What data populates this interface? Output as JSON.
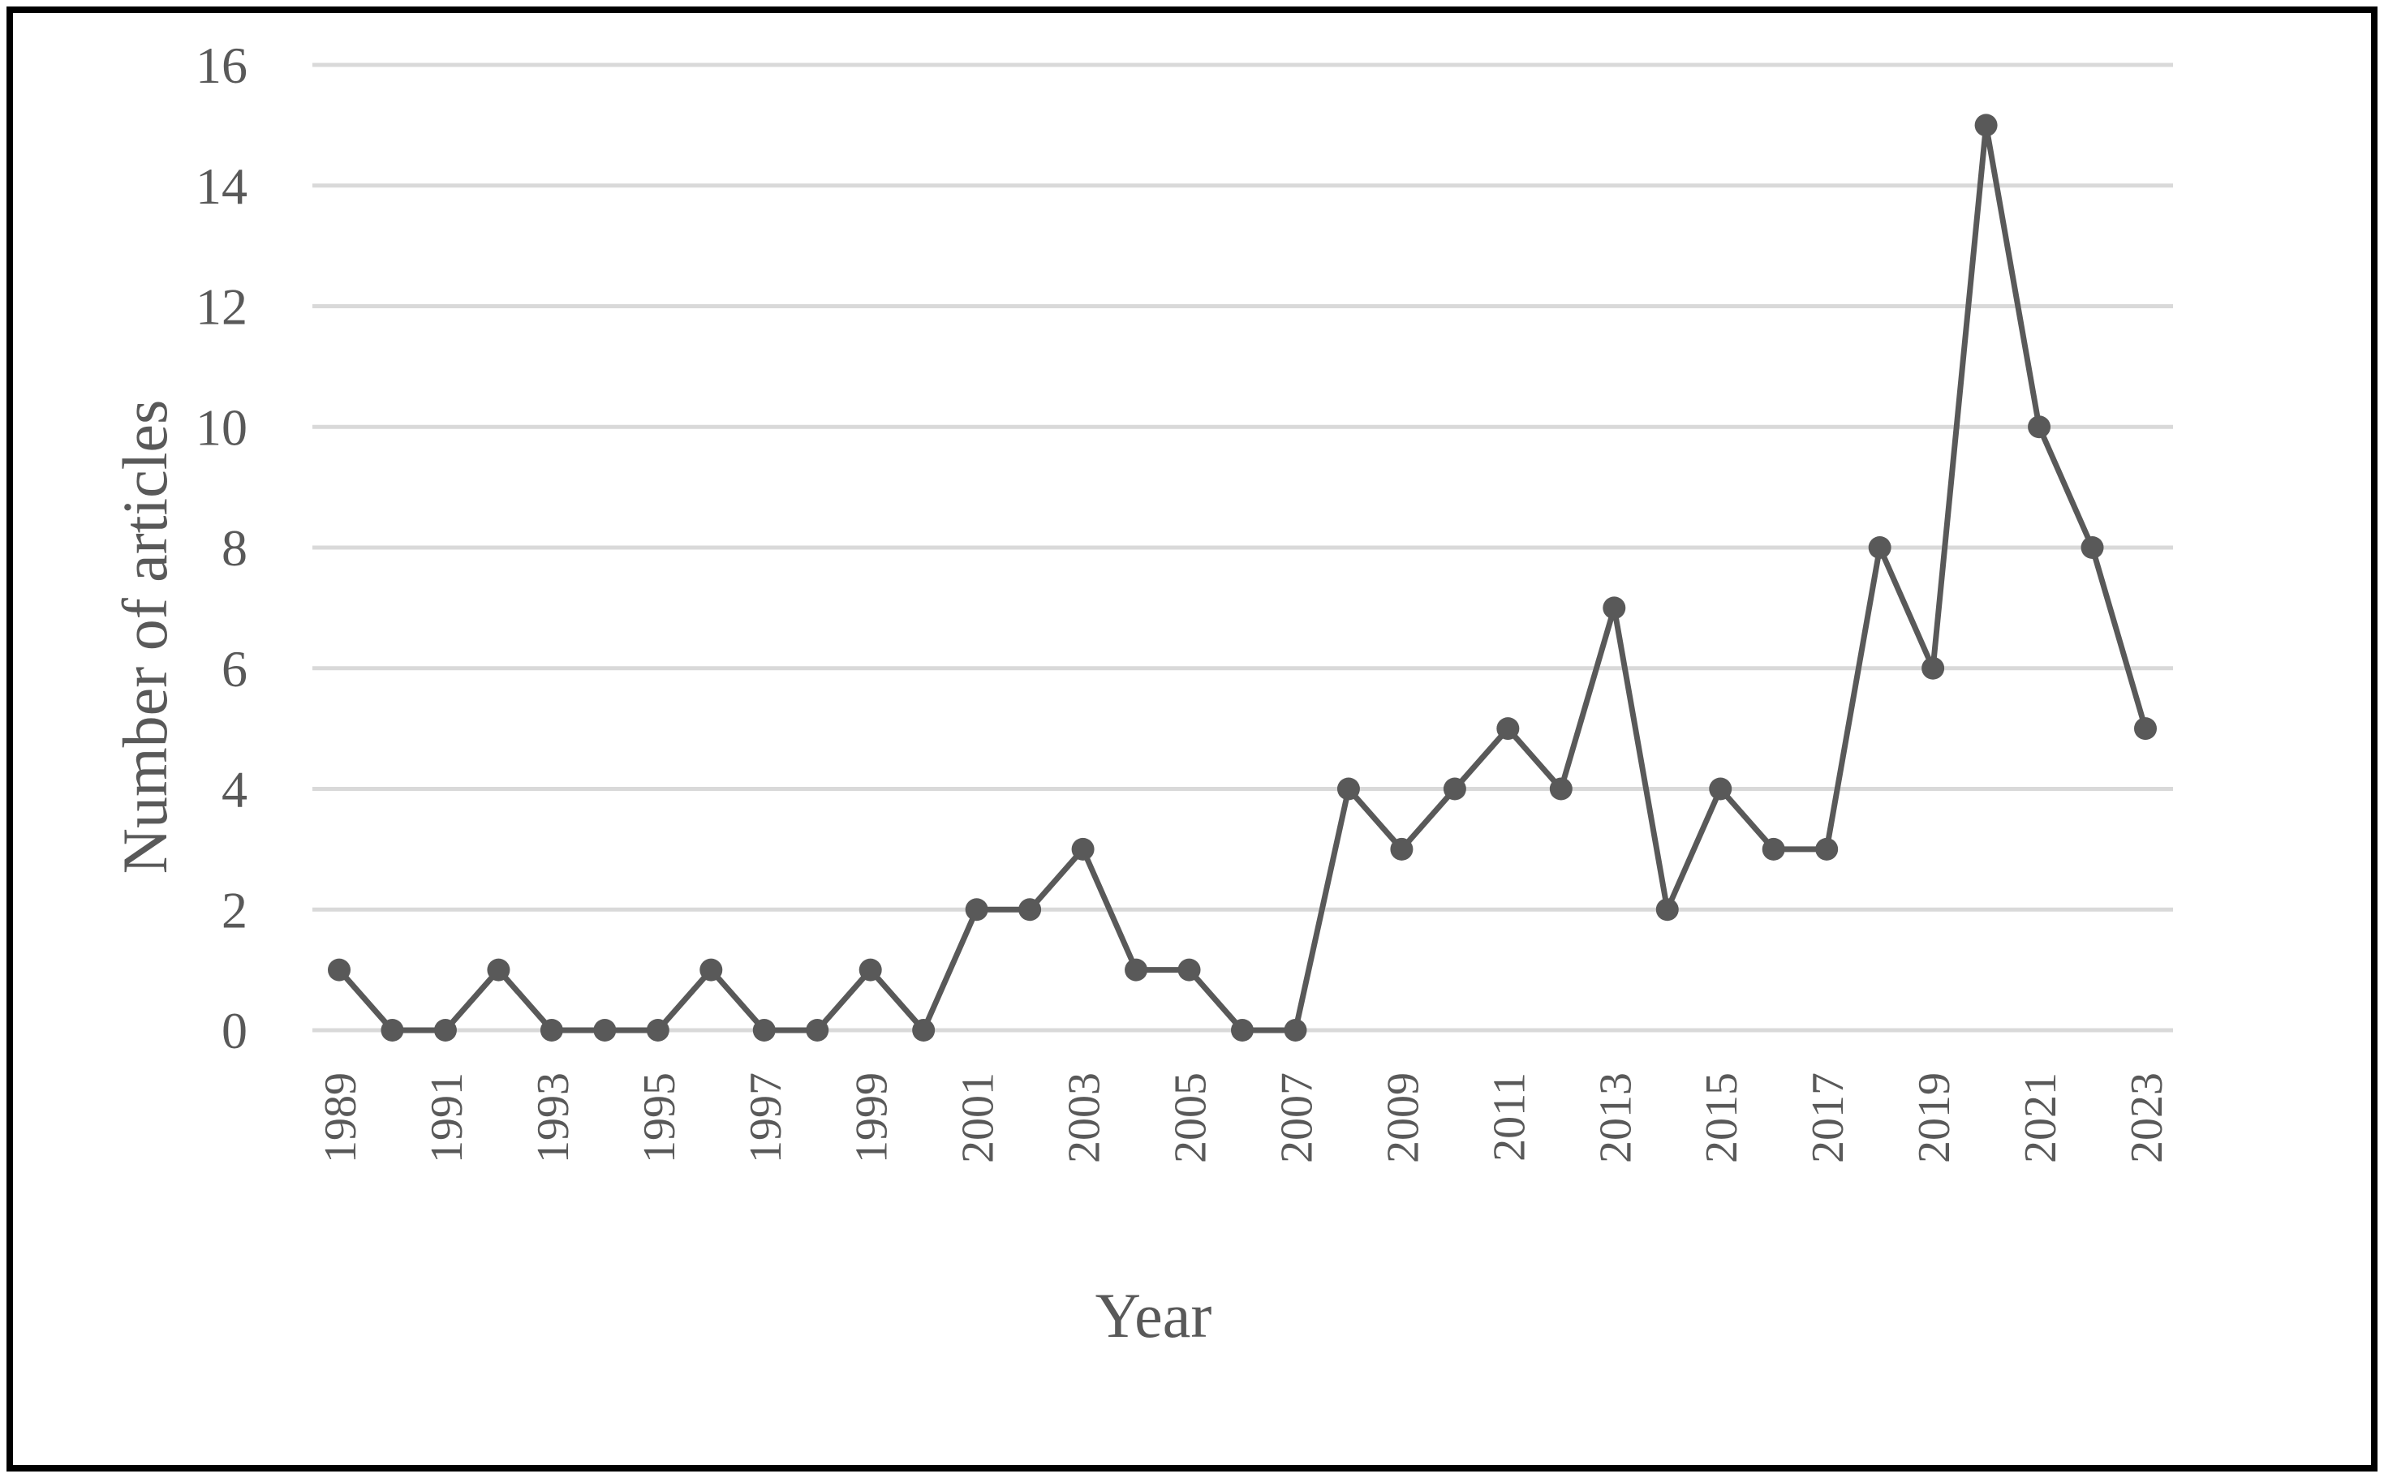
{
  "chart_data": {
    "type": "line",
    "title": "",
    "xlabel": "Year",
    "ylabel": "Number of articles",
    "x": [
      1989,
      1990,
      1991,
      1992,
      1993,
      1994,
      1995,
      1996,
      1997,
      1998,
      1999,
      2000,
      2001,
      2002,
      2003,
      2004,
      2005,
      2006,
      2007,
      2008,
      2009,
      2010,
      2011,
      2012,
      2013,
      2014,
      2015,
      2016,
      2017,
      2018,
      2019,
      2020,
      2021,
      2022,
      2023
    ],
    "x_tick_labels": [
      "1989",
      "1991",
      "1993",
      "1995",
      "1997",
      "1999",
      "2001",
      "2003",
      "2005",
      "2007",
      "2009",
      "2011",
      "2013",
      "2015",
      "2017",
      "2019",
      "2021",
      "2023"
    ],
    "series": [
      {
        "values": [
          1,
          0,
          0,
          1,
          0,
          0,
          0,
          1,
          0,
          0,
          1,
          0,
          2,
          2,
          3,
          1,
          1,
          0,
          0,
          4,
          3,
          4,
          5,
          4,
          7,
          2,
          4,
          3,
          3,
          8,
          6,
          15,
          10,
          8,
          5
        ]
      }
    ],
    "y_ticks": [
      "0",
      "2",
      "4",
      "6",
      "8",
      "10",
      "12",
      "14",
      "16"
    ],
    "ylim": [
      0,
      16
    ],
    "grid": true,
    "legend": "none",
    "colors": {
      "line": "#595959",
      "marker": "#595959",
      "grid": "#d9d9d9",
      "text": "#595959",
      "frame": "#000000"
    }
  }
}
